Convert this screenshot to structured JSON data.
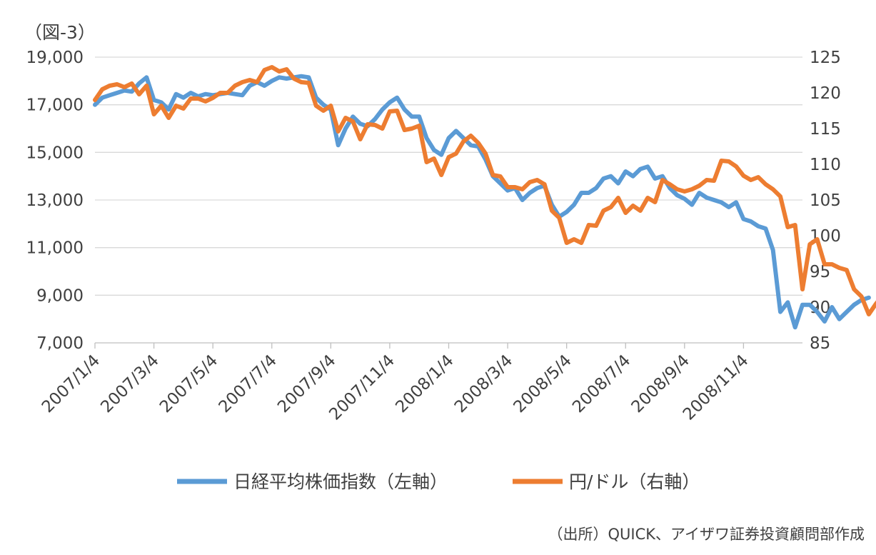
{
  "chart_data": {
    "type": "line",
    "title": "",
    "figure_label": "（図-3）",
    "source_note": "（出所）QUICK、アイザワ証券投資顧問部作成",
    "grid": true,
    "legend_position": "bottom",
    "y_left": {
      "range": [
        7000,
        19000
      ],
      "ticks": [
        7000,
        9000,
        11000,
        13000,
        15000,
        17000,
        19000
      ],
      "tick_labels": [
        "7,000",
        "9,000",
        "11,000",
        "13,000",
        "15,000",
        "17,000",
        "19,000"
      ]
    },
    "y_right": {
      "range": [
        85,
        125
      ],
      "ticks": [
        85,
        90,
        95,
        100,
        105,
        110,
        115,
        120,
        125
      ],
      "tick_labels": [
        "85",
        "90",
        "95",
        "100",
        "105",
        "110",
        "115",
        "120",
        "125"
      ]
    },
    "x_tick_labels": [
      "2007/1/4",
      "2007/3/4",
      "2007/5/4",
      "2007/7/4",
      "2007/9/4",
      "2007/11/4",
      "2008/1/4",
      "2008/3/4",
      "2008/5/4",
      "2008/7/4",
      "2008/9/4",
      "2008/11/4"
    ],
    "x_tick_weeks": [
      0,
      8,
      16,
      24,
      32,
      40,
      48,
      56,
      64,
      72,
      80,
      88
    ],
    "x_range_weeks": [
      0,
      96
    ],
    "series": [
      {
        "name": "日経平均株価指数（左軸）",
        "axis": "left",
        "color": "#5B9BD5",
        "values": [
          17000,
          17300,
          17400,
          17500,
          17600,
          17550,
          17900,
          18150,
          17200,
          17100,
          16800,
          17450,
          17300,
          17500,
          17350,
          17450,
          17400,
          17450,
          17500,
          17450,
          17400,
          17800,
          17950,
          17800,
          18000,
          18150,
          18100,
          18150,
          18200,
          18150,
          17300,
          17000,
          16800,
          15300,
          16000,
          16500,
          16200,
          16100,
          16400,
          16800,
          17100,
          17300,
          16800,
          16500,
          16500,
          15600,
          15100,
          14900,
          15600,
          15900,
          15600,
          15300,
          15250,
          14700,
          14000,
          13700,
          13400,
          13500,
          13000,
          13300,
          13500,
          13600,
          12800,
          12300,
          12500,
          12800,
          13300,
          13300,
          13500,
          13900,
          14000,
          13700,
          14200,
          14000,
          14300,
          14400,
          13900,
          14000,
          13500,
          13200,
          13050,
          12800,
          13300,
          13100,
          13000,
          12900,
          12700,
          12900,
          12200,
          12100,
          11900,
          11800,
          10900,
          8300,
          8700,
          7650,
          8600,
          8600,
          8300,
          7900,
          8500,
          8000,
          8300,
          8600,
          8800,
          8900
        ]
      },
      {
        "name": "円/ドル（右軸）",
        "axis": "right",
        "color": "#ED7D31",
        "values": [
          119,
          120.5,
          121,
          121.2,
          120.8,
          121.3,
          119.8,
          121,
          117,
          118.2,
          116.5,
          118.2,
          117.8,
          119.2,
          119.2,
          118.8,
          119.3,
          120,
          120,
          121,
          121.5,
          121.8,
          121.5,
          123.2,
          123.6,
          123,
          123.3,
          122,
          121.5,
          121.4,
          118.2,
          117.5,
          118.2,
          114.6,
          116.5,
          116,
          113.5,
          115.6,
          115.5,
          115,
          117.4,
          117.5,
          114.8,
          115,
          115.4,
          110.3,
          110.8,
          108.5,
          111,
          111.5,
          113.2,
          114,
          113,
          111.5,
          108.5,
          108.3,
          106.8,
          106.8,
          106.5,
          107.5,
          107.8,
          107.2,
          103.5,
          102.5,
          99,
          99.5,
          99,
          101.5,
          101.4,
          103.5,
          104,
          105.3,
          103.2,
          104.2,
          103.5,
          105.3,
          104.7,
          107.8,
          107.2,
          106.5,
          106.2,
          106.5,
          107,
          107.8,
          107.7,
          110.5,
          110.4,
          109.7,
          108.4,
          107.8,
          108.2,
          107.2,
          106.5,
          105.5,
          101.2,
          101.5,
          92.5,
          98.8,
          99.5,
          96,
          96,
          95.5,
          95.2,
          92.5,
          91.5,
          89,
          90.5,
          91.8
        ]
      }
    ]
  }
}
